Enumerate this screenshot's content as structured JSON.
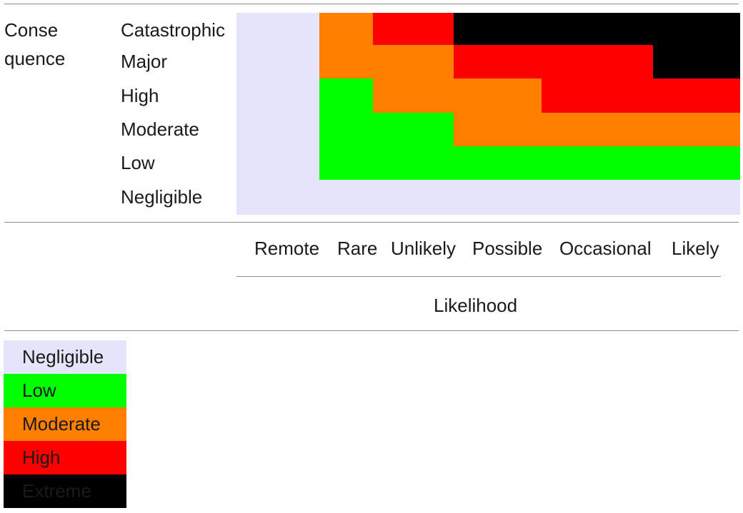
{
  "consequence_label_line1": "Conse",
  "consequence_label_line2": "quence",
  "consequence_levels": [
    "Catastrophic",
    "Major",
    "High",
    "Moderate",
    "Low",
    "Negligible"
  ],
  "likelihood_levels": [
    "Remote",
    "Rare",
    "Unlikely",
    "Possible",
    "Occasional",
    "Likely"
  ],
  "likelihood_label": "Likelihood",
  "colors": {
    "Negligible": "#e4e4fa",
    "Low": "#00ff00",
    "Moderate": "#ff8000",
    "High": "#ff0000",
    "Extreme": "#000000"
  },
  "matrix": [
    [
      "Negligible",
      "Moderate",
      "High",
      "Extreme",
      "Extreme",
      "Extreme"
    ],
    [
      "Negligible",
      "Moderate",
      "Moderate",
      "High",
      "High",
      "Extreme"
    ],
    [
      "Negligible",
      "Low",
      "Moderate",
      "Moderate",
      "High",
      "High"
    ],
    [
      "Negligible",
      "Low",
      "Low",
      "Moderate",
      "Moderate",
      "Moderate"
    ],
    [
      "Negligible",
      "Low",
      "Low",
      "Low",
      "Low",
      "Low"
    ],
    [
      "Negligible",
      "Negligible",
      "Negligible",
      "Negligible",
      "Negligible",
      "Negligible"
    ]
  ],
  "legend": [
    {
      "label": "Negligible",
      "level": "Negligible",
      "text_color": "#1a1a1a"
    },
    {
      "label": "Low",
      "level": "Low",
      "text_color": "#1a1a1a"
    },
    {
      "label": "Moderate",
      "level": "Moderate",
      "text_color": "#1a1a1a"
    },
    {
      "label": "High",
      "level": "High",
      "text_color": "#1a1a1a"
    },
    {
      "label": "Extreme",
      "level": "Extreme",
      "text_color": "#1a1a1a"
    }
  ]
}
